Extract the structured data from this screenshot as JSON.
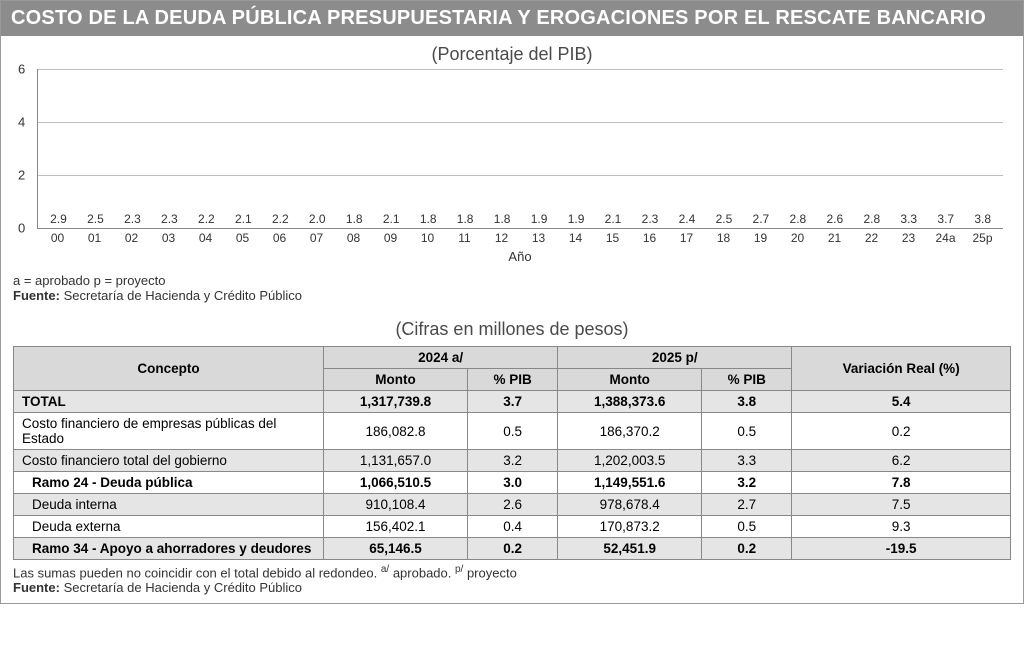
{
  "colors": {
    "title_bg": "#8c8c8c",
    "title_text": "#ffffff",
    "bar_fill": "#8f8f8f",
    "grid": "#bfbfbf",
    "axis": "#888888",
    "row_grey": "#e5e5e5",
    "header_bg": "#d9d9d9",
    "text": "#333333",
    "bg": "#ffffff"
  },
  "header": {
    "title": "COSTO DE LA DEUDA PÚBLICA PRESUPUESTARIA Y EROGACIONES POR EL RESCATE BANCARIO"
  },
  "chart": {
    "type": "bar",
    "subtitle": "(Porcentaje del PIB)",
    "xlabel": "Año",
    "ylim": [
      0,
      6
    ],
    "ytick_step": 2,
    "yticks": [
      0,
      2,
      4,
      6
    ],
    "bar_color": "#8f8f8f",
    "grid_color": "#bfbfbf",
    "background_color": "#ffffff",
    "label_fontsize": 12,
    "categories": [
      "00",
      "01",
      "02",
      "03",
      "04",
      "05",
      "06",
      "07",
      "08",
      "09",
      "10",
      "11",
      "12",
      "13",
      "14",
      "15",
      "16",
      "17",
      "18",
      "19",
      "20",
      "21",
      "22",
      "23",
      "24a",
      "25p"
    ],
    "values": [
      2.9,
      2.5,
      2.3,
      2.3,
      2.2,
      2.1,
      2.2,
      2.0,
      1.8,
      2.1,
      1.8,
      1.8,
      1.8,
      1.9,
      1.9,
      2.1,
      2.3,
      2.4,
      2.5,
      2.7,
      2.8,
      2.6,
      2.8,
      3.3,
      3.7,
      3.8
    ],
    "note_line": "a = aprobado  p = proyecto",
    "source_label": "Fuente:",
    "source_text": " Secretaría de Hacienda y Crédito Público"
  },
  "table": {
    "subtitle": "(Cifras en millones de pesos)",
    "columns": {
      "concept": "Concepto",
      "group_2024": "2024 a/",
      "group_2025": "2025 p/",
      "monto": "Monto",
      "pib": "% PIB",
      "variacion": "Variación Real (%)"
    },
    "rows": [
      {
        "bold": true,
        "grey": true,
        "indent": 0,
        "concept": "TOTAL",
        "m2024": "1,317,739.8",
        "p2024": "3.7",
        "m2025": "1,388,373.6",
        "p2025": "3.8",
        "var": "5.4"
      },
      {
        "bold": false,
        "grey": false,
        "indent": 0,
        "concept": "Costo financiero de empresas públicas del Estado",
        "m2024": "186,082.8",
        "p2024": "0.5",
        "m2025": "186,370.2",
        "p2025": "0.5",
        "var": "0.2"
      },
      {
        "bold": false,
        "grey": true,
        "indent": 0,
        "concept": "Costo financiero total del gobierno",
        "m2024": "1,131,657.0",
        "p2024": "3.2",
        "m2025": "1,202,003.5",
        "p2025": "3.3",
        "var": "6.2"
      },
      {
        "bold": true,
        "grey": false,
        "indent": 1,
        "concept": "Ramo 24 - Deuda pública",
        "m2024": "1,066,510.5",
        "p2024": "3.0",
        "m2025": "1,149,551.6",
        "p2025": "3.2",
        "var": "7.8"
      },
      {
        "bold": false,
        "grey": true,
        "indent": 2,
        "concept": "Deuda interna",
        "m2024": "910,108.4",
        "p2024": "2.6",
        "m2025": "978,678.4",
        "p2025": "2.7",
        "var": "7.5"
      },
      {
        "bold": false,
        "grey": false,
        "indent": 2,
        "concept": "Deuda externa",
        "m2024": "156,402.1",
        "p2024": "0.4",
        "m2025": "170,873.2",
        "p2025": "0.5",
        "var": "9.3"
      },
      {
        "bold": true,
        "grey": true,
        "indent": 1,
        "concept": "Ramo 34 - Apoyo a ahorradores y deudores",
        "m2024": "65,146.5",
        "p2024": "0.2",
        "m2025": "52,451.9",
        "p2025": "0.2",
        "var": "-19.5"
      }
    ],
    "note_line_prefix": "Las sumas pueden no coincidir con el total debido al redondeo. ",
    "note_a": "a/",
    "note_a_text": " aprobado. ",
    "note_p": "p/",
    "note_p_text": " proyecto",
    "source_label": "Fuente:",
    "source_text": " Secretaría de Hacienda y Crédito Público"
  }
}
